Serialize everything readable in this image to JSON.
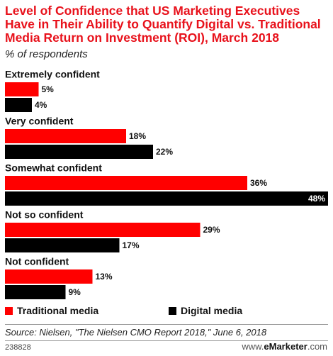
{
  "title": "Level of Confidence that US Marketing Executives Have in Their Ability to Quantify Digital vs. Traditional Media Return on Investment (ROI), March 2018",
  "subtitle": "% of respondents",
  "source": "Source: Nielsen, \"The Nielsen CMO Report 2018,\" June 6, 2018",
  "chart_id": "238828",
  "brand": {
    "www": "www.",
    "name": "eMarketer",
    "com": ".com"
  },
  "colors": {
    "traditional": "#ff0000",
    "digital": "#000000"
  },
  "chart_data": {
    "type": "bar",
    "orientation": "horizontal",
    "categories": [
      "Extremely confident",
      "Very confident",
      "Somewhat confident",
      "Not so confident",
      "Not confident"
    ],
    "series": [
      {
        "name": "Traditional media",
        "values": [
          5,
          18,
          36,
          29,
          13
        ],
        "labels": [
          "5%",
          "18%",
          "36%",
          "29%",
          "13%"
        ]
      },
      {
        "name": "Digital media",
        "values": [
          4,
          22,
          48,
          17,
          9
        ],
        "labels": [
          "4%",
          "22%",
          "48%",
          "17%",
          "9%"
        ]
      }
    ],
    "xlim": [
      0,
      48
    ],
    "legend_position": "bottom"
  }
}
